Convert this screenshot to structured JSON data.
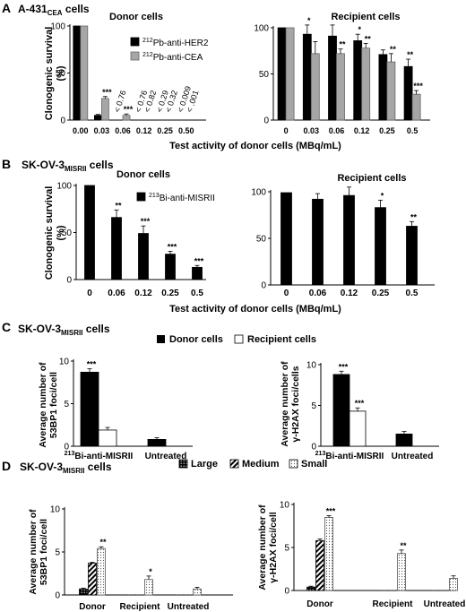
{
  "panels": [
    {
      "letter": "A",
      "cell_line": "A-431",
      "cell_sub": "CEA",
      "cell_suffix": " cells",
      "y_title": [
        "Clonogenic survival",
        "(%)"
      ],
      "x_title": "Test activity of donor cells (MBq/mL)"
    },
    {
      "letter": "B",
      "cell_line": "SK-OV-3",
      "cell_sub": "MISRII",
      "cell_suffix": " cells",
      "y_title": [
        "Clonogenic survival",
        "(%)"
      ],
      "x_title": "Test activity of donor cells (MBq/mL)"
    },
    {
      "letter": "C",
      "cell_line": "SK-OV-3",
      "cell_sub": "MISRII",
      "cell_suffix": " cells",
      "legend": [
        "Donor cells",
        "Recipient cells"
      ]
    },
    {
      "letter": "D",
      "cell_line": "SK-OV-3",
      "cell_sub": "MISRII",
      "cell_suffix": " cells",
      "legend": [
        "Large",
        "Medium",
        "Small"
      ]
    }
  ],
  "colors": {
    "black": "#000000",
    "gray": "#a6a6a6",
    "white": "#ffffff"
  },
  "chart_data": [
    {
      "id": "A-donor",
      "type": "bar",
      "title": "Donor cells",
      "ylabel": "Clonogenic survival (%)",
      "ylim": [
        0,
        100
      ],
      "yticks": [
        0,
        50,
        100
      ],
      "categories": [
        "0.00",
        "0.03",
        "0.06",
        "0.12",
        "0.25",
        "0.50"
      ],
      "series": [
        {
          "name": "212Pb-anti-HER2",
          "values": [
            100,
            5,
            0,
            0,
            0,
            0
          ],
          "errors": [
            0,
            1,
            0,
            0,
            0,
            0
          ],
          "stars": [
            "",
            "",
            "",
            "",
            "",
            ""
          ]
        },
        {
          "name": "212Pb-anti-CEA",
          "values": [
            100,
            23,
            5,
            0,
            0,
            0
          ],
          "errors": [
            0,
            2,
            1.5,
            0,
            0,
            0
          ],
          "stars": [
            "",
            "***",
            "***",
            "",
            "",
            ""
          ]
        }
      ],
      "annotations": [
        {
          "category": "0.06",
          "lines": [
            "< 0.76"
          ]
        },
        {
          "category": "0.12",
          "lines": [
            "< 0.76",
            "< 0.82"
          ]
        },
        {
          "category": "0.25",
          "lines": [
            "< 0.29",
            "< 0.32"
          ]
        },
        {
          "category": "0.50",
          "lines": [
            "< 0.009",
            "< .001"
          ]
        }
      ],
      "legend_entries": [
        {
          "label": "Pb-anti-HER2",
          "sup": "212"
        },
        {
          "label": "Pb-anti-CEA",
          "sup": "212"
        }
      ],
      "legend": "center-right"
    },
    {
      "id": "A-recipient",
      "type": "bar",
      "title": "Recipient cells",
      "ylim": [
        0,
        100
      ],
      "yticks": [
        0,
        50,
        100
      ],
      "categories": [
        "0",
        "0.03",
        "0.06",
        "0.12",
        "0.25",
        "0.5"
      ],
      "series": [
        {
          "name": "212Pb-anti-HER2",
          "values": [
            100,
            93,
            91,
            86,
            71,
            58
          ],
          "errors": [
            0,
            10,
            12,
            7,
            5,
            8
          ],
          "stars": [
            "",
            "*",
            "",
            "*",
            "",
            "**"
          ]
        },
        {
          "name": "212Pb-anti-CEA",
          "values": [
            100,
            72,
            72,
            78,
            63,
            28
          ],
          "errors": [
            0,
            13,
            5,
            5,
            9,
            4
          ],
          "stars": [
            "",
            "",
            "**",
            "**",
            "**",
            "***"
          ]
        }
      ]
    },
    {
      "id": "B-donor",
      "type": "bar",
      "title": "Donor cells",
      "ylabel": "Clonogenic survival (%)",
      "xlabel": "Test activity of donor cells (MBq/mL)",
      "ylim": [
        0,
        100
      ],
      "yticks": [
        0,
        50,
        100
      ],
      "categories": [
        "0",
        "0.06",
        "0.12",
        "0.25",
        "0.5"
      ],
      "series": [
        {
          "name": "213Bi-anti-MISRII",
          "values": [
            100,
            66,
            49,
            27,
            13
          ],
          "errors": [
            0,
            8,
            8,
            3,
            2
          ],
          "stars": [
            "",
            "**",
            "***",
            "***",
            "***"
          ]
        }
      ],
      "legend_entries": [
        {
          "label": "Bi-anti-MISRII",
          "sup": "213"
        }
      ],
      "legend": "top-right"
    },
    {
      "id": "B-recipient",
      "type": "bar",
      "title": "Recipient cells",
      "ylim": [
        0,
        100
      ],
      "yticks": [
        0,
        50,
        100
      ],
      "categories": [
        "0",
        "0.06",
        "0.12",
        "0.25",
        "0.5"
      ],
      "series": [
        {
          "name": "213Bi-anti-MISRII",
          "values": [
            99,
            92,
            96,
            83,
            63
          ],
          "errors": [
            0,
            6,
            9,
            8,
            5
          ],
          "stars": [
            "",
            "",
            "",
            "*",
            "**"
          ]
        }
      ]
    },
    {
      "id": "C-53BP1",
      "type": "bar",
      "ylabel": "Average number of 53BP1 foci/cell",
      "ylim": [
        0,
        10
      ],
      "yticks": [
        0,
        5,
        10
      ],
      "categories": [
        "213Bi-anti-MISRII",
        "Untreated"
      ],
      "category_labels": [
        {
          "sup": "213",
          "label": "Bi-anti-MISRII"
        },
        {
          "sup": "",
          "label": "Untreated"
        }
      ],
      "series": [
        {
          "name": "Donor cells",
          "values": [
            8.7,
            0.8
          ],
          "errors": [
            0.4,
            0.2
          ],
          "stars": [
            "***",
            ""
          ]
        },
        {
          "name": "Recipient cells",
          "values": [
            1.9,
            null
          ],
          "errors": [
            0.3,
            0
          ],
          "stars": [
            "",
            ""
          ]
        }
      ]
    },
    {
      "id": "C-gH2AX",
      "type": "bar",
      "ylabel": "Average number of γ-H2AX foci/cells",
      "ylim": [
        0,
        10
      ],
      "yticks": [
        0,
        5,
        10
      ],
      "categories": [
        "213Bi-anti-MISRII",
        "Untreated"
      ],
      "category_labels": [
        {
          "sup": "213",
          "label": "Bi-anti-MISRII"
        },
        {
          "sup": "",
          "label": "Untreated"
        }
      ],
      "series": [
        {
          "name": "Donor cells",
          "values": [
            8.8,
            1.5
          ],
          "errors": [
            0.4,
            0.3
          ],
          "stars": [
            "***",
            ""
          ]
        },
        {
          "name": "Recipient cells",
          "values": [
            4.3,
            null
          ],
          "errors": [
            0.4,
            0
          ],
          "stars": [
            "***",
            ""
          ]
        }
      ]
    },
    {
      "id": "D-53BP1",
      "type": "bar",
      "ylabel": "Average number of 53BP1 foci/cell",
      "ylim": [
        0,
        10
      ],
      "yticks": [
        0,
        5,
        10
      ],
      "categories": [
        "Donor",
        "Recipient",
        "Untreated"
      ],
      "series": [
        {
          "name": "Large",
          "values": [
            0.7,
            0,
            0
          ],
          "errors": [
            0.1,
            0,
            0
          ],
          "stars": [
            "",
            "",
            ""
          ]
        },
        {
          "name": "Medium",
          "values": [
            3.7,
            0,
            0
          ],
          "errors": [
            0.1,
            0,
            0
          ],
          "stars": [
            "",
            "",
            ""
          ]
        },
        {
          "name": "Small",
          "values": [
            5.4,
            1.8,
            0.7
          ],
          "errors": [
            0.2,
            0.4,
            0.2
          ],
          "stars": [
            "**",
            "*",
            ""
          ]
        }
      ]
    },
    {
      "id": "D-gH2AX",
      "type": "bar",
      "ylabel": "Average number of γ-H2AX foci/cell",
      "ylim": [
        0,
        10
      ],
      "yticks": [
        0,
        5,
        10
      ],
      "categories": [
        "Donor",
        "Recipient",
        "Untreated"
      ],
      "series": [
        {
          "name": "Large",
          "values": [
            0.4,
            0,
            0
          ],
          "errors": [
            0.1,
            0,
            0
          ],
          "stars": [
            "",
            "",
            ""
          ]
        },
        {
          "name": "Medium",
          "values": [
            5.8,
            0,
            0
          ],
          "errors": [
            0.2,
            0,
            0
          ],
          "stars": [
            "",
            "",
            ""
          ]
        },
        {
          "name": "Small",
          "values": [
            8.5,
            4.3,
            1.4
          ],
          "errors": [
            0.2,
            0.4,
            0.3
          ],
          "stars": [
            "***",
            "**",
            ""
          ]
        }
      ]
    }
  ]
}
